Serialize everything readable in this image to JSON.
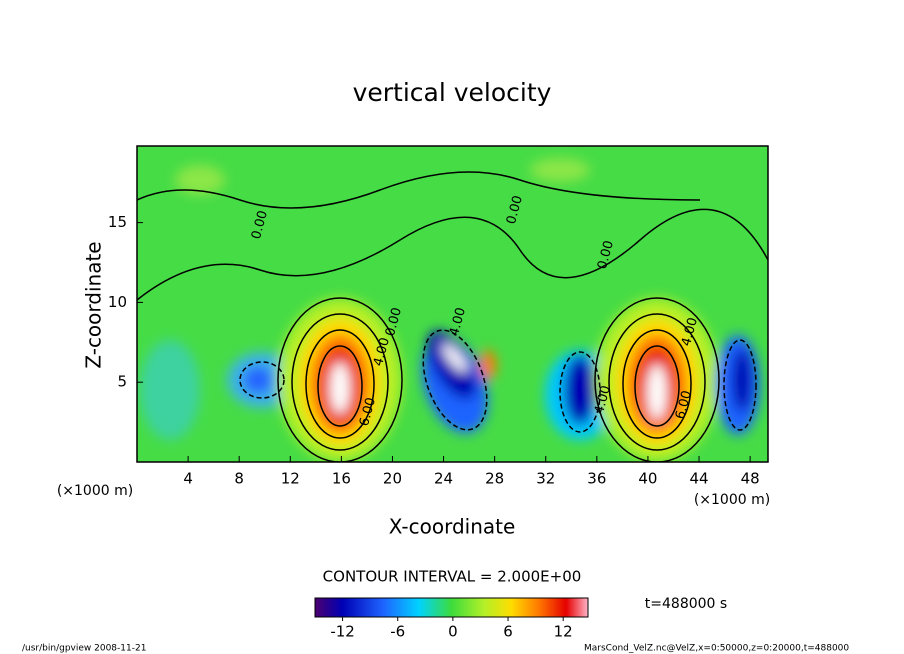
{
  "chart_data": {
    "type": "contour",
    "title": "vertical velocity",
    "x_label": "X-coordinate",
    "y_label": "Z-coordinate",
    "x_unit": "(×1000 m)",
    "xlim": [
      0,
      49.4
    ],
    "xticks": [
      4,
      8,
      12,
      16,
      20,
      24,
      28,
      32,
      36,
      40,
      44,
      48
    ],
    "ylim": [
      0,
      19.8
    ],
    "yticks": [
      5,
      10,
      15
    ],
    "contour_labels": [
      {
        "value": 0,
        "label": "0.00"
      },
      {
        "value": 0,
        "label": "0.00"
      },
      {
        "value": 0,
        "label": "0.00"
      },
      {
        "value": 0,
        "label": "0.00"
      },
      {
        "value": 4,
        "label": "4.00"
      },
      {
        "value": 6,
        "label": "6.00"
      },
      {
        "value": 4,
        "label": "4.00"
      },
      {
        "value": 4,
        "label": "4.00"
      },
      {
        "value": 4,
        "label": "4.00"
      },
      {
        "value": 6,
        "label": "6.00"
      }
    ],
    "contour_interval": "CONTOUR INTERVAL = 2.000E+00",
    "time_label": "t=488000 s",
    "colorbar": {
      "lim": [
        -15,
        14.7
      ],
      "ticks": [
        -12,
        -6,
        0,
        6,
        12
      ]
    },
    "footer_left": "/usr/bin/gpview   2008-11-21",
    "footer_right": "MarsCond_VelZ.nc@VelZ,x=0:50000,z=0:20000,t=488000"
  }
}
